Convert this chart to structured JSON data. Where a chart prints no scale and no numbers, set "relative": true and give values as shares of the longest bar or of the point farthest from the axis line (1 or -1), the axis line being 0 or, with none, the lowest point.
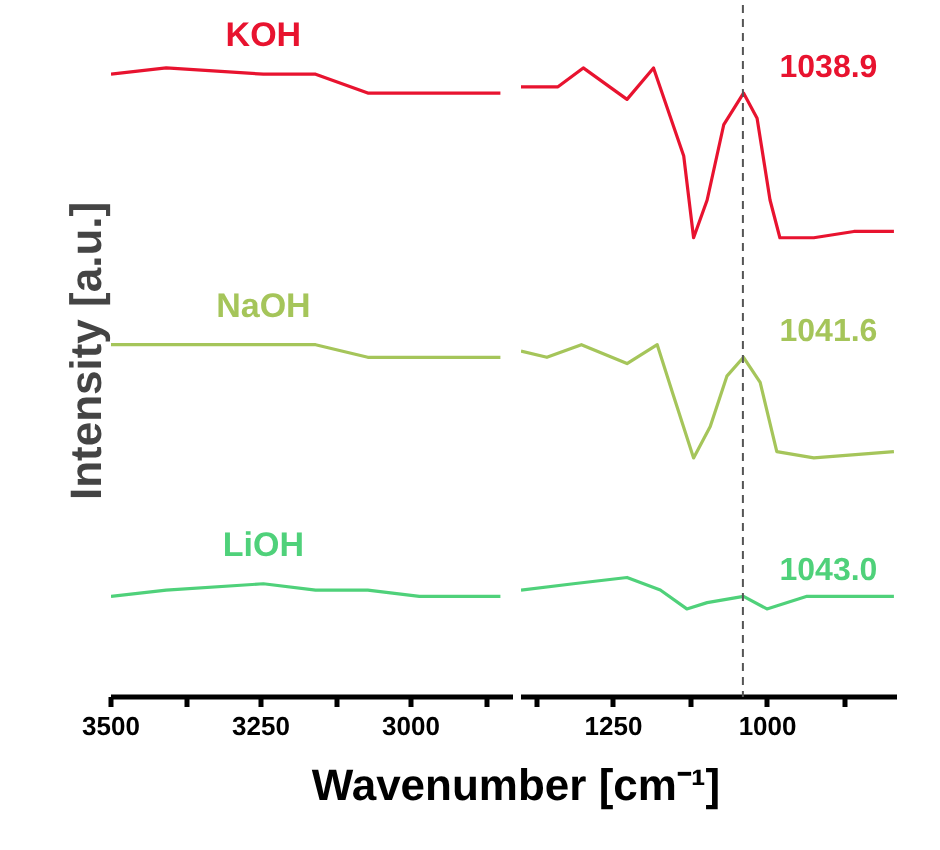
{
  "chart_data": [
    {
      "type": "line",
      "ylabel": "Intensity [a.u.]",
      "relative": true,
      "tick_labels": "x",
      "xlim": [
        3500,
        2830
      ],
      "xticks": [
        3500,
        3250,
        3000,
        {
          "value": 3375,
          "label": null
        },
        {
          "value": 3125,
          "label": null
        },
        {
          "value": 2875,
          "label": null
        }
      ],
      "x": [
        3500,
        3408,
        3246,
        3159,
        3072,
        2986,
        2921,
        2851
      ],
      "series": [
        {
          "name": "KOH",
          "color": "#e8132f",
          "values": [
            0.99,
            1.0,
            0.99,
            0.99,
            0.96,
            0.96,
            0.96,
            0.96
          ]
        },
        {
          "name": "NaOH",
          "color": "#a5c55a",
          "values": [
            0.56,
            0.56,
            0.56,
            0.56,
            0.54,
            0.54,
            0.54,
            0.54
          ]
        },
        {
          "name": "LiOH",
          "color": "#4fd17a",
          "values": [
            0.16,
            0.17,
            0.18,
            0.17,
            0.17,
            0.16,
            0.16,
            0.16
          ]
        }
      ]
    },
    {
      "type": "line",
      "xlabel": "Wavenumber [cm⁻¹]",
      "relative": true,
      "tick_labels": "x",
      "xlim": [
        1400,
        790
      ],
      "xticks": [
        1250,
        1000,
        {
          "value": 1375,
          "label": null
        },
        {
          "value": 1125,
          "label": null
        },
        {
          "value": 875,
          "label": null
        }
      ],
      "series": [
        {
          "color": "#e8132f",
          "x": [
            1400,
            1370,
            1340,
            1299,
            1228,
            1185,
            1136,
            1120,
            1098,
            1071,
            1039,
            1017,
            996,
            980,
            925,
            860,
            795
          ],
          "values": [
            0.97,
            0.97,
            0.97,
            1.0,
            0.95,
            1.0,
            0.86,
            0.73,
            0.79,
            0.91,
            0.96,
            0.92,
            0.79,
            0.73,
            0.73,
            0.74,
            0.74
          ]
        },
        {
          "color": "#a5c55a",
          "x": [
            1400,
            1358,
            1302,
            1228,
            1179,
            1153,
            1120,
            1093,
            1066,
            1039,
            1012,
            985,
            925,
            795
          ],
          "values": [
            0.55,
            0.54,
            0.56,
            0.53,
            0.56,
            0.48,
            0.38,
            0.43,
            0.51,
            0.54,
            0.5,
            0.39,
            0.38,
            0.39
          ]
        },
        {
          "color": "#4fd17a",
          "x": [
            1400,
            1315,
            1228,
            1174,
            1131,
            1098,
            1039,
            1001,
            936,
            795
          ],
          "values": [
            0.17,
            0.18,
            0.19,
            0.17,
            0.14,
            0.15,
            0.16,
            0.14,
            0.16,
            0.16
          ]
        }
      ],
      "annotations": [
        "1038.9",
        "1041.6",
        "1043.0"
      ],
      "ref_lines": [
        {
          "axis": "x",
          "value": 1040,
          "color": "#555555",
          "line_style": "dashed"
        }
      ]
    }
  ]
}
